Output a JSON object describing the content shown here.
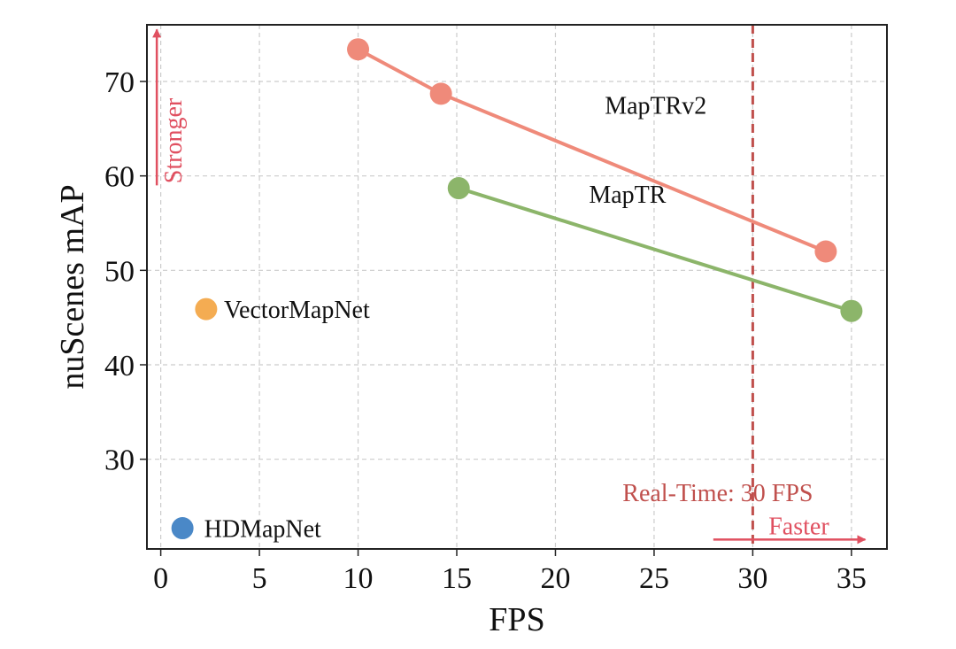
{
  "chart_data": {
    "type": "scatter",
    "xlabel": "FPS",
    "ylabel": "nuScenes mAP",
    "xlim": [
      -0.7,
      36.8
    ],
    "ylim": [
      20.5,
      76
    ],
    "xticks": [
      0,
      5,
      10,
      15,
      20,
      25,
      30,
      35
    ],
    "yticks": [
      30,
      40,
      50,
      60,
      70
    ],
    "grid": true,
    "series": [
      {
        "name": "MapTRv2",
        "color": "#ef8a7a",
        "connected": true,
        "x": [
          10.0,
          14.2,
          33.7
        ],
        "y": [
          73.4,
          68.7,
          52.0
        ],
        "label_at": [
          22.5,
          67.5
        ]
      },
      {
        "name": "MapTR",
        "color": "#8cb56a",
        "connected": true,
        "x": [
          15.1,
          35.0
        ],
        "y": [
          58.7,
          45.7
        ],
        "label_at": [
          21.7,
          58.1
        ]
      },
      {
        "name": "VectorMapNet",
        "color": "#f4ac52",
        "connected": false,
        "x": [
          2.3
        ],
        "y": [
          45.9
        ],
        "label_at": [
          3.2,
          45.9
        ]
      },
      {
        "name": "HDMapNet",
        "color": "#4a88c7",
        "connected": false,
        "x": [
          1.1
        ],
        "y": [
          22.7
        ],
        "label_at": [
          2.2,
          22.7
        ]
      }
    ],
    "annotations": {
      "realtime": {
        "text": "Real-Time: 30 FPS",
        "x": 30,
        "color": "#c0504d",
        "label_at": [
          23.4,
          26.5
        ]
      },
      "stronger": {
        "text": "Stronger",
        "color": "#e05060",
        "x": -0.2,
        "y_from": 59,
        "y_to": 75.5,
        "label_y": 59.2
      },
      "faster": {
        "text": "Faster",
        "color": "#e05060",
        "y": 21.5,
        "x_from": 28.0,
        "x_to": 35.7,
        "label_at": [
          30.8,
          23.0
        ]
      }
    }
  }
}
